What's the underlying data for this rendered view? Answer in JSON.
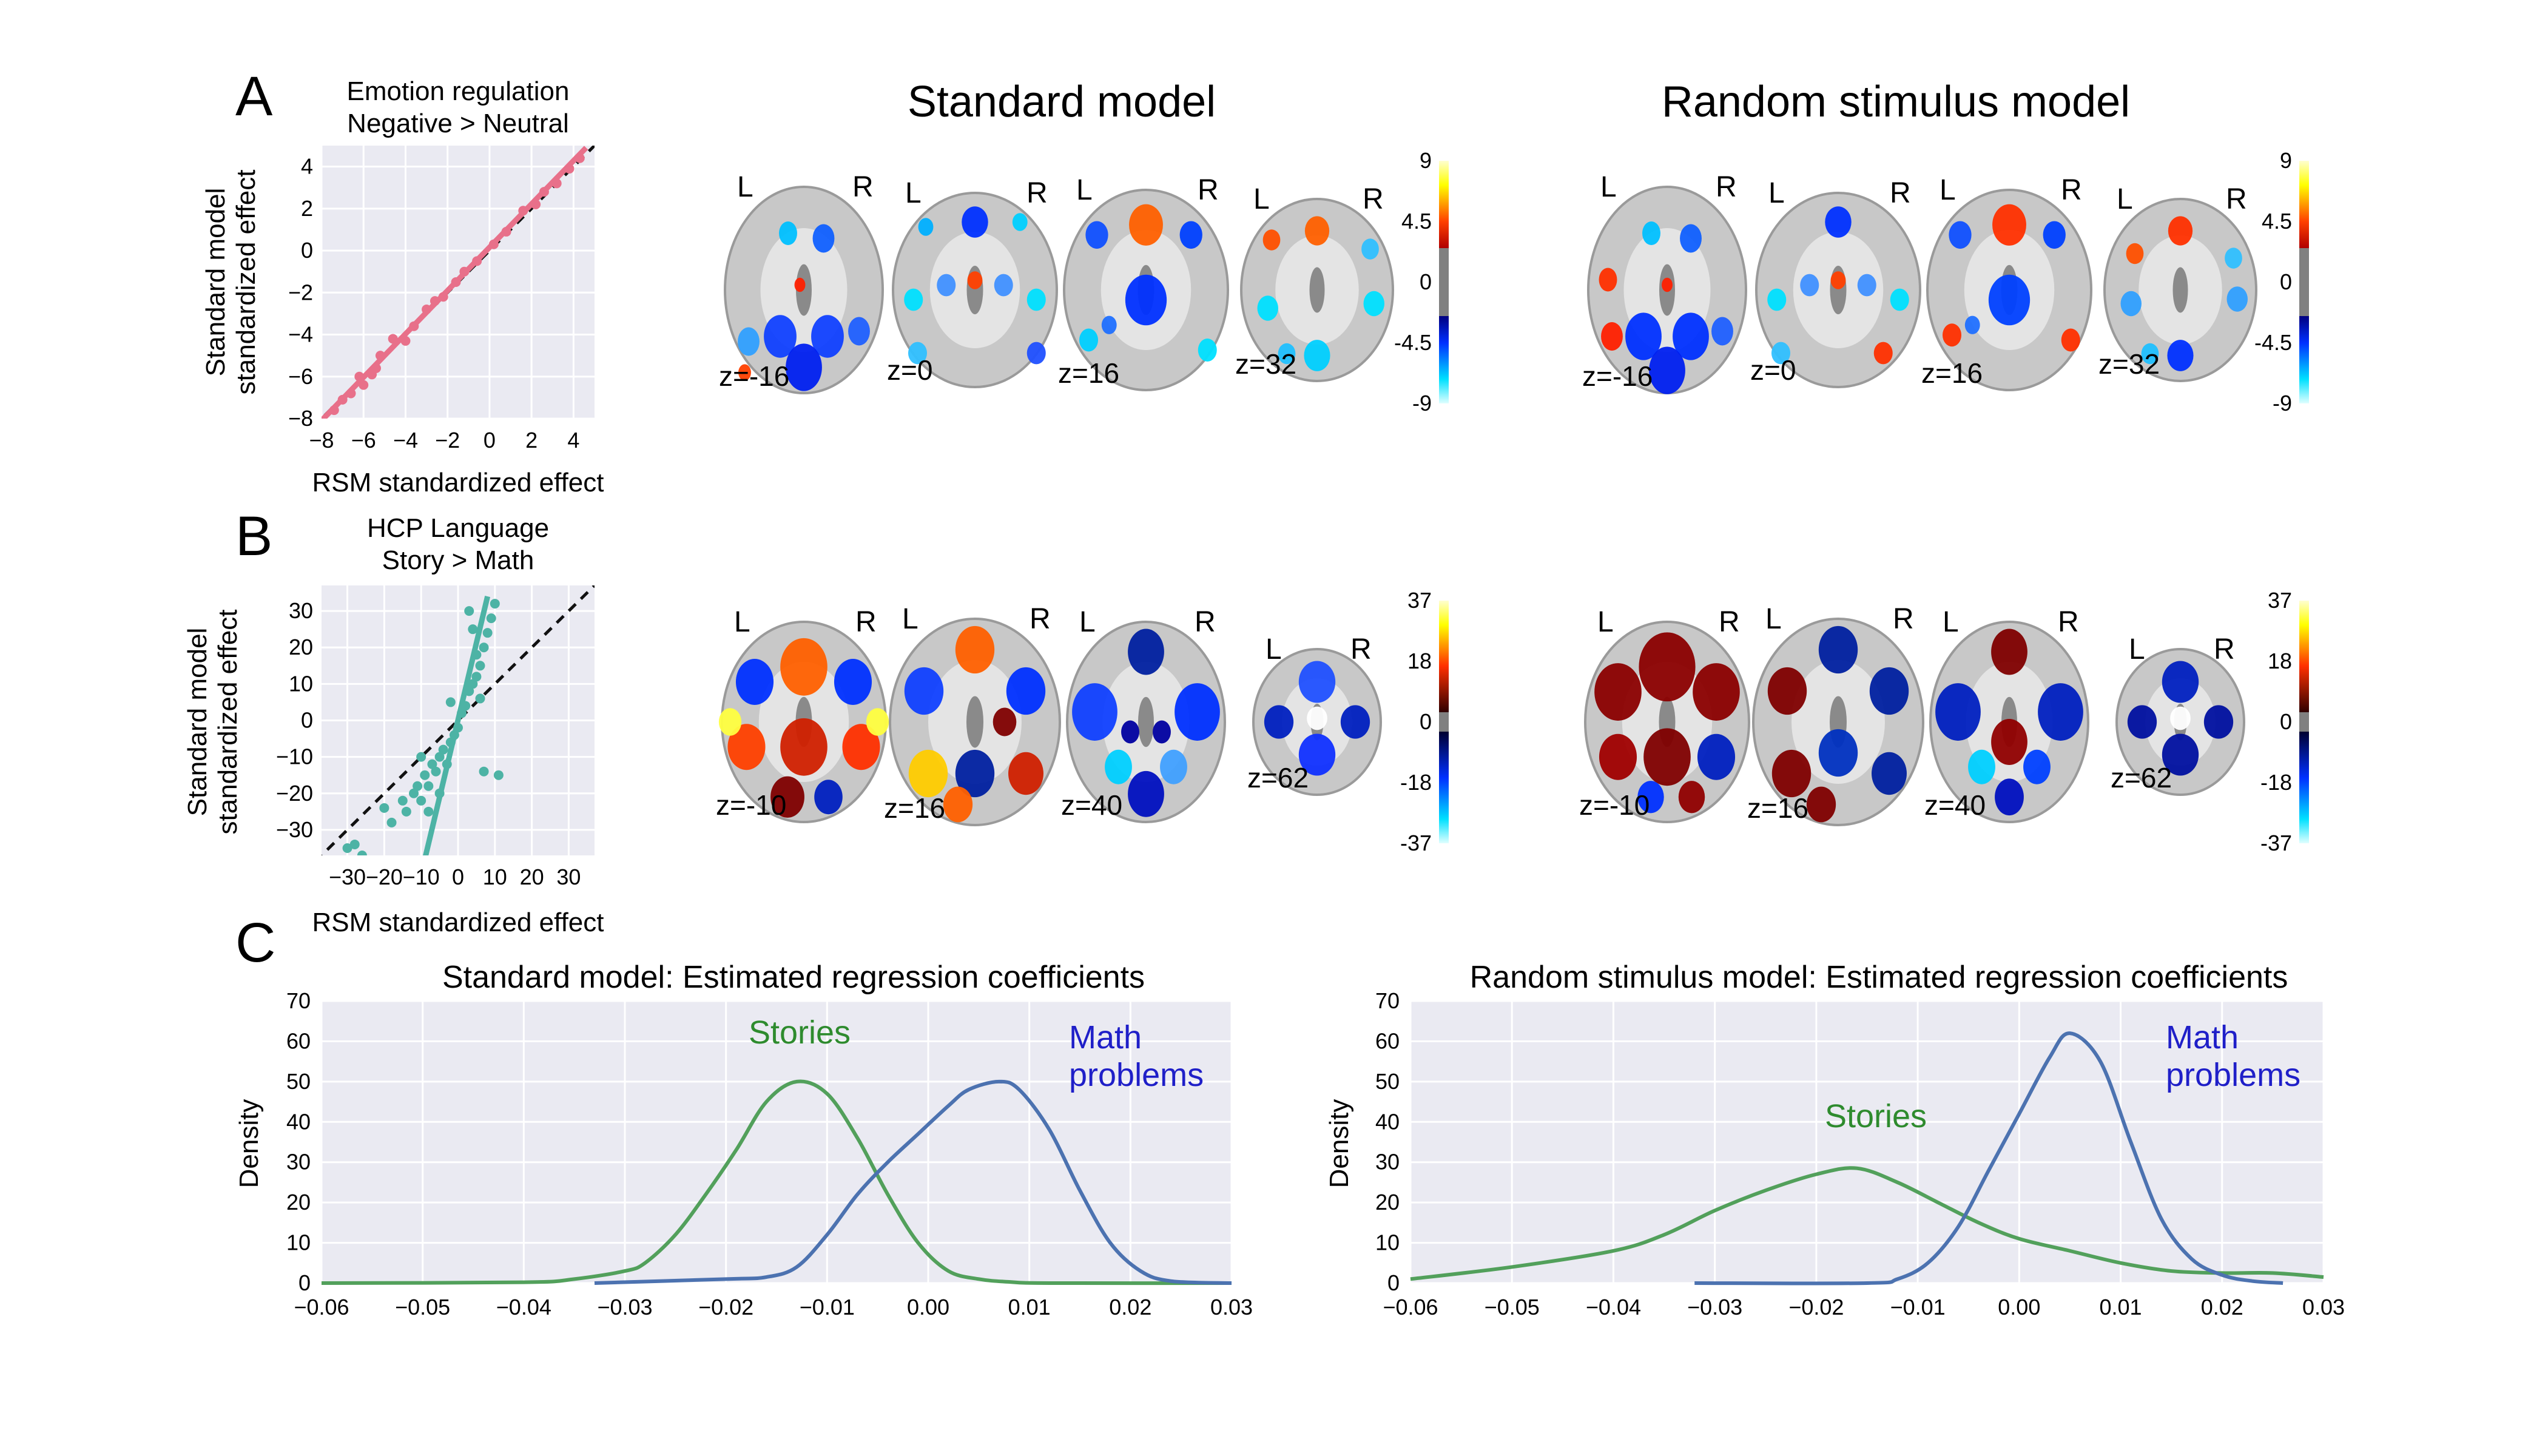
{
  "panel_letters": {
    "a": "A",
    "b": "B",
    "c": "C"
  },
  "headers": {
    "standard": "Standard model",
    "random": "Random stimulus model"
  },
  "panel_a": {
    "title_line1": "Emotion regulation",
    "title_line2": "Negative > Neutral",
    "slices": [
      "z=-16",
      "z=0",
      "z=16",
      "z=32"
    ],
    "colorbar_ticks": [
      "9",
      "4.5",
      "0",
      "-4.5",
      "-9"
    ]
  },
  "panel_b": {
    "title_line1": "HCP Language",
    "title_line2": "Story > Math",
    "slices": [
      "z=-10",
      "z=16",
      "z=40",
      "z=62"
    ],
    "colorbar_ticks": [
      "37",
      "18",
      "0",
      "-18",
      "-37"
    ]
  },
  "hemisphere_labels": {
    "left": "L",
    "right": "R"
  },
  "panel_c": {
    "titles": [
      "Standard model: Estimated regression coefficients",
      "Random stimulus model: Estimated regression coefficients"
    ],
    "ylabel": "Density",
    "stories_label": "Stories",
    "math_label_line1": "Math",
    "math_label_line2": "problems"
  },
  "colors": {
    "plot_bg": "#eaeaf2",
    "grid": "#ffffff",
    "scatter_a": "#e8708a",
    "scatter_b": "#4db3a5",
    "stories": "#52a05b",
    "math": "#4c72b0",
    "stories_text": "#2e8b2e",
    "math_text": "#1f1fc8",
    "brain_gray": "#bdbdbd"
  },
  "chart_data": [
    {
      "type": "scatter",
      "panel": "A",
      "title": "Emotion regulation\nNegative > Neutral",
      "xlabel": "RSM standardized effect",
      "ylabel": "Standard model\nstandardized effect",
      "xlim": [
        -8,
        5
      ],
      "ylim": [
        -8,
        5
      ],
      "xticks": [
        -8,
        -6,
        -4,
        -2,
        0,
        2,
        4
      ],
      "yticks": [
        -8,
        -6,
        -4,
        -2,
        0,
        2,
        4
      ],
      "grid": true,
      "identity_line": true,
      "fit_line": [
        [
          -8.2,
          -8.3
        ],
        [
          4.6,
          4.9
        ]
      ],
      "points": [
        [
          -7.4,
          -7.6
        ],
        [
          -7.0,
          -7.1
        ],
        [
          -6.6,
          -6.8
        ],
        [
          -6.2,
          -6.0
        ],
        [
          -6.0,
          -6.4
        ],
        [
          -5.6,
          -5.9
        ],
        [
          -5.4,
          -5.6
        ],
        [
          -5.2,
          -5.0
        ],
        [
          -4.6,
          -4.2
        ],
        [
          -4.0,
          -4.3
        ],
        [
          -3.6,
          -3.6
        ],
        [
          -3.0,
          -2.8
        ],
        [
          -2.6,
          -2.4
        ],
        [
          -2.2,
          -2.2
        ],
        [
          -1.6,
          -1.5
        ],
        [
          -1.2,
          -1.0
        ],
        [
          -0.6,
          -0.5
        ],
        [
          0.2,
          0.3
        ],
        [
          0.8,
          0.9
        ],
        [
          1.6,
          1.9
        ],
        [
          2.2,
          2.2
        ],
        [
          2.6,
          2.8
        ],
        [
          3.2,
          3.2
        ],
        [
          3.8,
          3.9
        ],
        [
          4.3,
          4.4
        ]
      ]
    },
    {
      "type": "scatter",
      "panel": "B",
      "title": "HCP Language\nStory > Math",
      "xlabel": "RSM standardized effect",
      "ylabel": "Standard model\nstandardized effect",
      "xlim": [
        -37,
        37
      ],
      "ylim": [
        -37,
        37
      ],
      "xticks": [
        -30,
        -20,
        -10,
        0,
        10,
        20,
        30
      ],
      "yticks": [
        -30,
        -20,
        -10,
        0,
        10,
        20,
        30
      ],
      "grid": true,
      "identity_line": true,
      "fit_line": [
        [
          -9,
          -38
        ],
        [
          8,
          34
        ]
      ],
      "points": [
        [
          -30,
          -35
        ],
        [
          -26,
          -37
        ],
        [
          -28,
          -34
        ],
        [
          -20,
          -24
        ],
        [
          -18,
          -28
        ],
        [
          -15,
          -22
        ],
        [
          -14,
          -25
        ],
        [
          -12,
          -20
        ],
        [
          -11,
          -18
        ],
        [
          -10,
          -22
        ],
        [
          -9,
          -15
        ],
        [
          -8,
          -18
        ],
        [
          -8,
          -25
        ],
        [
          -7,
          -12
        ],
        [
          -6,
          -14
        ],
        [
          -5,
          -10
        ],
        [
          -5,
          -20
        ],
        [
          -4,
          -8
        ],
        [
          -3,
          -12
        ],
        [
          -2,
          -6
        ],
        [
          -1,
          -4
        ],
        [
          0,
          -2
        ],
        [
          1,
          2
        ],
        [
          2,
          4
        ],
        [
          3,
          8
        ],
        [
          4,
          10
        ],
        [
          5,
          12
        ],
        [
          5,
          18
        ],
        [
          6,
          15
        ],
        [
          7,
          20
        ],
        [
          8,
          24
        ],
        [
          9,
          28
        ],
        [
          10,
          32
        ],
        [
          3,
          30
        ],
        [
          4,
          25
        ],
        [
          7,
          -14
        ],
        [
          11,
          -15
        ],
        [
          -10,
          -10
        ],
        [
          -2,
          5
        ],
        [
          6,
          6
        ]
      ]
    },
    {
      "type": "line",
      "panel": "C-standard",
      "title": "Standard model: Estimated regression coefficients",
      "xlabel": "",
      "ylabel": "Density",
      "xlim": [
        -0.06,
        0.03
      ],
      "ylim": [
        0,
        70
      ],
      "xticks": [
        -0.06,
        -0.05,
        -0.04,
        -0.03,
        -0.02,
        -0.01,
        0.0,
        0.01,
        0.02,
        0.03
      ],
      "xticklabels": [
        "−0.06",
        "−0.05",
        "−0.04",
        "−0.03",
        "−0.02",
        "−0.01",
        "0.00",
        "0.01",
        "0.02",
        "0.03"
      ],
      "yticks": [
        0,
        10,
        20,
        30,
        40,
        50,
        60,
        70
      ],
      "grid": true,
      "series": [
        {
          "name": "Stories",
          "x": [
            -0.06,
            -0.04,
            -0.035,
            -0.03,
            -0.028,
            -0.025,
            -0.022,
            -0.019,
            -0.016,
            -0.013,
            -0.01,
            -0.007,
            -0.004,
            -0.001,
            0.002,
            0.005,
            0.008,
            0.012,
            0.03
          ],
          "y": [
            0,
            0.2,
            1,
            3,
            5,
            12,
            22,
            33,
            45,
            50,
            47,
            36,
            22,
            10,
            3,
            1,
            0.3,
            0,
            0
          ]
        },
        {
          "name": "Math problems",
          "x": [
            -0.033,
            -0.02,
            -0.016,
            -0.013,
            -0.01,
            -0.007,
            -0.004,
            -0.001,
            0.002,
            0.004,
            0.007,
            0.009,
            0.012,
            0.015,
            0.018,
            0.021,
            0.024,
            0.03
          ],
          "y": [
            0,
            1,
            1.5,
            4,
            12,
            22,
            30,
            37,
            44,
            48,
            50,
            48,
            38,
            23,
            10,
            3,
            0.5,
            0
          ]
        }
      ]
    },
    {
      "type": "line",
      "panel": "C-random",
      "title": "Random stimulus model: Estimated regression coefficients",
      "xlabel": "",
      "ylabel": "Density",
      "xlim": [
        -0.06,
        0.03
      ],
      "ylim": [
        0,
        70
      ],
      "xticks": [
        -0.06,
        -0.05,
        -0.04,
        -0.03,
        -0.02,
        -0.01,
        0.0,
        0.01,
        0.02,
        0.03
      ],
      "xticklabels": [
        "−0.06",
        "−0.05",
        "−0.04",
        "−0.03",
        "−0.02",
        "−0.01",
        "0.00",
        "0.01",
        "0.02",
        "0.03"
      ],
      "yticks": [
        0,
        10,
        20,
        30,
        40,
        50,
        60,
        70
      ],
      "grid": true,
      "series": [
        {
          "name": "Stories",
          "x": [
            -0.06,
            -0.05,
            -0.04,
            -0.035,
            -0.03,
            -0.025,
            -0.02,
            -0.016,
            -0.012,
            -0.008,
            -0.004,
            0.0,
            0.005,
            0.01,
            0.015,
            0.02,
            0.025,
            0.03
          ],
          "y": [
            1,
            4,
            8,
            12,
            18,
            23,
            27,
            28.5,
            25,
            20,
            15,
            11,
            8,
            5,
            3,
            2.5,
            2.5,
            1.5
          ]
        },
        {
          "name": "Math problems",
          "x": [
            -0.032,
            -0.015,
            -0.012,
            -0.009,
            -0.006,
            -0.003,
            0.0,
            0.003,
            0.005,
            0.008,
            0.011,
            0.014,
            0.017,
            0.02,
            0.023,
            0.026
          ],
          "y": [
            0,
            0,
            1,
            5,
            14,
            28,
            42,
            56,
            62,
            55,
            35,
            16,
            6,
            2,
            0.5,
            0
          ]
        }
      ]
    }
  ]
}
